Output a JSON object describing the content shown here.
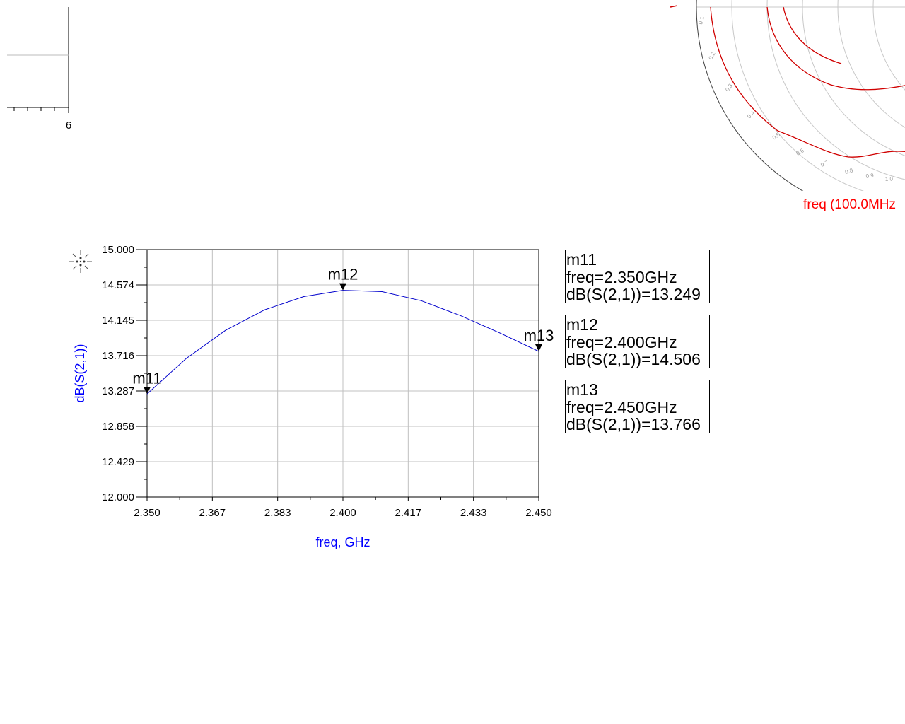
{
  "top_left_plot": {
    "tick_label": "6"
  },
  "smith_chart": {
    "caption": "freq (100.0MHz",
    "scale_labels": [
      "0.1",
      "0.2",
      "0.3",
      "0.4",
      "0.5",
      "0.6",
      "0.7",
      "0.8",
      "0.9",
      "1.0"
    ],
    "trace_color": "#d00000"
  },
  "chart_data": {
    "type": "line",
    "xlabel": "freq, GHz",
    "ylabel": "dB(S(2,1))",
    "xlim": [
      2.35,
      2.45
    ],
    "ylim": [
      12.0,
      15.0
    ],
    "x_ticks": [
      "2.350",
      "2.367",
      "2.383",
      "2.400",
      "2.417",
      "2.433",
      "2.450"
    ],
    "y_ticks": [
      "15.000",
      "14.574",
      "14.145",
      "13.716",
      "13.287",
      "12.858",
      "12.429",
      "12.000"
    ],
    "grid": true,
    "series_color": "#0000cc",
    "x": [
      2.35,
      2.36,
      2.37,
      2.38,
      2.39,
      2.4,
      2.41,
      2.42,
      2.43,
      2.44,
      2.45
    ],
    "y": [
      13.249,
      13.68,
      14.02,
      14.27,
      14.43,
      14.506,
      14.49,
      14.38,
      14.2,
      13.99,
      13.766
    ],
    "markers": [
      {
        "name": "m11",
        "x": 2.35,
        "freq": "freq=2.350GHz",
        "value": "dB(S(2,1))=13.249",
        "y": 13.249
      },
      {
        "name": "m12",
        "x": 2.4,
        "freq": "freq=2.400GHz",
        "value": "dB(S(2,1))=14.506",
        "y": 14.506
      },
      {
        "name": "m13",
        "x": 2.45,
        "freq": "freq=2.450GHz",
        "value": "dB(S(2,1))=13.766",
        "y": 13.766
      }
    ]
  }
}
